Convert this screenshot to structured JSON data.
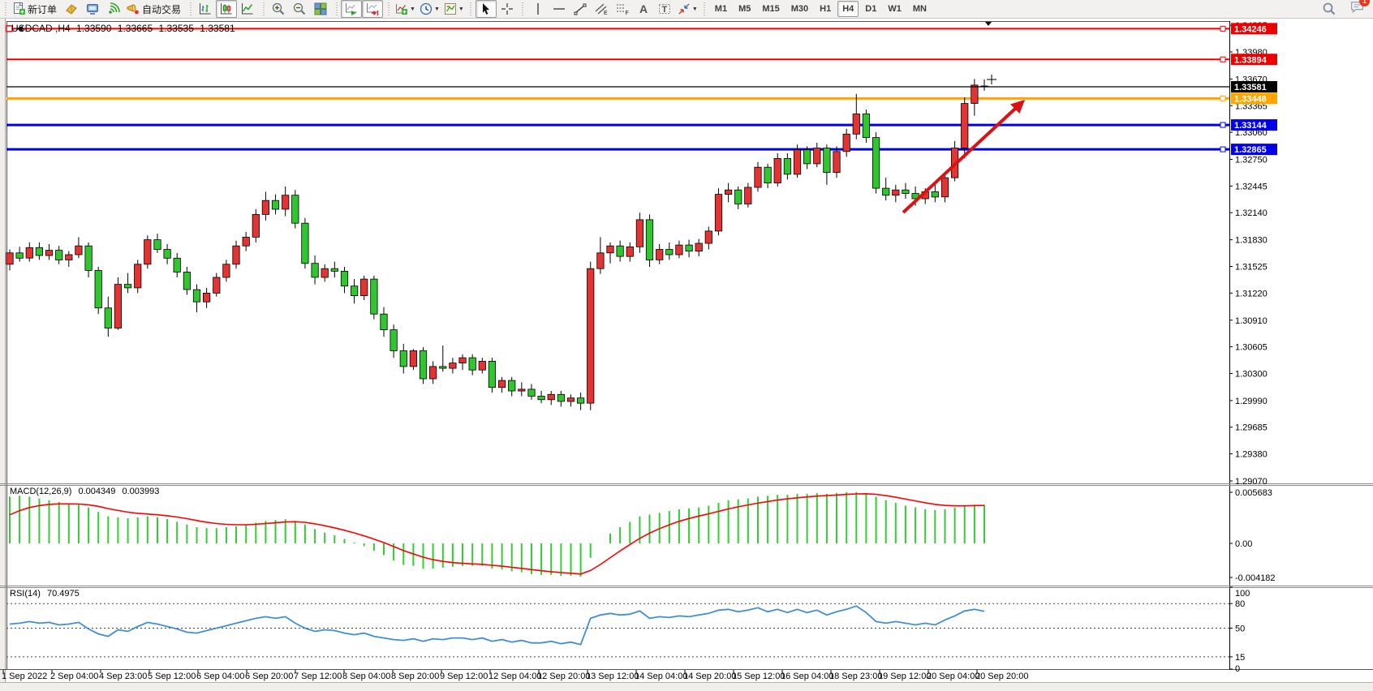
{
  "toolbar": {
    "buttons": [
      {
        "name": "new-order-button",
        "icon": "doc-plus",
        "label": "新订单",
        "group_start": true
      },
      {
        "name": "market-watch-button",
        "icon": "gold-book"
      },
      {
        "name": "community-button",
        "icon": "community"
      },
      {
        "name": "signals-button",
        "icon": "signals"
      },
      {
        "name": "autotrading-button",
        "icon": "autotrade",
        "label": "自动交易"
      },
      {
        "name": "bar-chart-button",
        "icon": "chart-bars",
        "group_start": true
      },
      {
        "name": "candle-chart-button",
        "icon": "chart-candles",
        "pressed": true
      },
      {
        "name": "line-chart-button",
        "icon": "chart-line"
      },
      {
        "name": "zoom-in-button",
        "icon": "zoom-in",
        "group_start": true
      },
      {
        "name": "zoom-out-button",
        "icon": "zoom-out"
      },
      {
        "name": "tile-windows-button",
        "icon": "tile"
      },
      {
        "name": "auto-scroll-button",
        "icon": "auto-scroll",
        "pressed": true,
        "group_start": true
      },
      {
        "name": "chart-shift-button",
        "icon": "chart-shift",
        "pressed": true
      },
      {
        "name": "indicators-button",
        "icon": "indicators",
        "dropdown": true,
        "group_start": true
      },
      {
        "name": "periods-button",
        "icon": "clock",
        "dropdown": true
      },
      {
        "name": "templates-button",
        "icon": "template",
        "dropdown": true
      },
      {
        "name": "cursor-button",
        "icon": "cursor",
        "pressed": true,
        "group_start": true
      },
      {
        "name": "crosshair-button",
        "icon": "crosshair"
      },
      {
        "name": "vertical-line-button",
        "icon": "vline",
        "group_start": true
      },
      {
        "name": "horizontal-line-button",
        "icon": "hline"
      },
      {
        "name": "trendline-button",
        "icon": "trendline"
      },
      {
        "name": "channel-button",
        "icon": "channel"
      },
      {
        "name": "fibonacci-button",
        "icon": "fibo"
      },
      {
        "name": "text-button",
        "icon": "text"
      },
      {
        "name": "label-button",
        "icon": "label"
      },
      {
        "name": "arrows-button",
        "icon": "arrows",
        "dropdown": true
      }
    ],
    "timeframes": {
      "items": [
        "M1",
        "M5",
        "M15",
        "M30",
        "H1",
        "H4",
        "D1",
        "W1",
        "MN"
      ],
      "active": "H4"
    },
    "notification_count": "1"
  },
  "chart": {
    "title": {
      "symbol": "USDCAD ,H4",
      "open": "1.33590",
      "high": "1.33665",
      "low": "1.33535",
      "close": "1.33581"
    },
    "current_price": "1.33581",
    "hlines": [
      {
        "price": "1.34246",
        "value": 1.34246,
        "color": "#ee0000",
        "width": 2,
        "kind": "resistance"
      },
      {
        "price": "1.33894",
        "value": 1.33894,
        "color": "#ee0000",
        "width": 2,
        "kind": "resistance"
      },
      {
        "price": "1.33581",
        "value": 1.33581,
        "color": "#000000",
        "width": 1,
        "kind": "current-price"
      },
      {
        "price": "1.33448",
        "value": 1.33448,
        "color": "#ffa500",
        "width": 3,
        "kind": "level"
      },
      {
        "price": "1.33144",
        "value": 1.33144,
        "color": "#0000ee",
        "width": 3,
        "kind": "support"
      },
      {
        "price": "1.32865",
        "value": 1.32865,
        "color": "#0000ee",
        "width": 3,
        "kind": "support"
      }
    ],
    "price_ticks": [
      "1.34285",
      "1.33980",
      "1.33670",
      "1.33365",
      "1.33060",
      "1.32750",
      "1.32445",
      "1.32140",
      "1.31830",
      "1.31525",
      "1.31220",
      "1.30910",
      "1.30605",
      "1.30300",
      "1.29990",
      "1.29685",
      "1.29380",
      "1.29070"
    ],
    "time_labels": [
      "1 Sep 2022",
      "2 Sep 04:00",
      "4 Sep 23:00",
      "5 Sep 12:00",
      "6 Sep 04:00",
      "6 Sep 20:00",
      "7 Sep 12:00",
      "8 Sep 04:00",
      "8 Sep 20:00",
      "9 Sep 12:00",
      "12 Sep 04:00",
      "12 Sep 20:00",
      "13 Sep 12:00",
      "14 Sep 04:00",
      "14 Sep 20:00",
      "15 Sep 12:00",
      "16 Sep 04:00",
      "18 Sep 23:00",
      "19 Sep 12:00",
      "20 Sep 04:00",
      "20 Sep 20:00"
    ]
  },
  "macd": {
    "label": "MACD(12,26,9)",
    "value_main": "0.004349",
    "value_signal": "0.003993",
    "ticks": [
      "0.005683",
      "0.00",
      "-0.004182"
    ]
  },
  "rsi": {
    "label": "RSI(14)",
    "value": "70.4975",
    "levels": [
      "100",
      "80",
      "50",
      "15",
      "0"
    ],
    "dashed_levels": [
      80,
      50,
      15
    ]
  },
  "colors": {
    "bull": "#e43333",
    "bear": "#2fc62f",
    "wick": "#000000",
    "macd_hist": "#32cd32",
    "macd_signal": "#ff0000",
    "rsi_line": "#3f8fd2",
    "arrow": "#dd1111",
    "axis_text": "#000000"
  },
  "chart_data": [
    {
      "type": "candlestick",
      "title": "USDCAD ,H4 1.33590 1.33665 1.33535 1.33581",
      "symbol": "USDCAD",
      "timeframe": "H4",
      "current_price": 1.33581,
      "ylim": [
        1.2907,
        1.34285
      ],
      "y_ticks": [
        1.34285,
        1.3398,
        1.3367,
        1.33365,
        1.3306,
        1.3275,
        1.32445,
        1.3214,
        1.3183,
        1.31525,
        1.3122,
        1.3091,
        1.30605,
        1.303,
        1.2999,
        1.29685,
        1.2938,
        1.2907
      ],
      "x_tick_labels": [
        "1 Sep 2022",
        "2 Sep 04:00",
        "4 Sep 23:00",
        "5 Sep 12:00",
        "6 Sep 04:00",
        "6 Sep 20:00",
        "7 Sep 12:00",
        "8 Sep 04:00",
        "8 Sep 20:00",
        "9 Sep 12:00",
        "12 Sep 04:00",
        "12 Sep 20:00",
        "13 Sep 12:00",
        "14 Sep 04:00",
        "14 Sep 20:00",
        "15 Sep 12:00",
        "16 Sep 04:00",
        "18 Sep 23:00",
        "19 Sep 12:00",
        "20 Sep 04:00",
        "20 Sep 20:00"
      ],
      "horizontal_lines": [
        1.34246,
        1.33894,
        1.33581,
        1.33448,
        1.33144,
        1.32865
      ],
      "annotation": "red up-trend arrow pointing to upper-right near latest rally",
      "ohlc": [
        [
          1.3155,
          1.3172,
          1.3148,
          1.3168
        ],
        [
          1.3168,
          1.3175,
          1.3158,
          1.3162
        ],
        [
          1.3162,
          1.318,
          1.3158,
          1.3174
        ],
        [
          1.3174,
          1.318,
          1.316,
          1.3165
        ],
        [
          1.3165,
          1.3178,
          1.316,
          1.3171
        ],
        [
          1.3171,
          1.3176,
          1.3155,
          1.316
        ],
        [
          1.316,
          1.317,
          1.3152,
          1.3166
        ],
        [
          1.3166,
          1.3186,
          1.3162,
          1.3176
        ],
        [
          1.3176,
          1.318,
          1.314,
          1.3148
        ],
        [
          1.3148,
          1.3152,
          1.3098,
          1.3105
        ],
        [
          1.3105,
          1.3118,
          1.3072,
          1.3082
        ],
        [
          1.3082,
          1.314,
          1.308,
          1.3132
        ],
        [
          1.3132,
          1.3145,
          1.3122,
          1.3128
        ],
        [
          1.3128,
          1.316,
          1.3122,
          1.3155
        ],
        [
          1.3155,
          1.3188,
          1.315,
          1.3183
        ],
        [
          1.3183,
          1.319,
          1.3168,
          1.3172
        ],
        [
          1.3172,
          1.3178,
          1.3155,
          1.3162
        ],
        [
          1.3162,
          1.3168,
          1.314,
          1.3146
        ],
        [
          1.3146,
          1.3152,
          1.312,
          1.3126
        ],
        [
          1.3126,
          1.3132,
          1.31,
          1.3112
        ],
        [
          1.3112,
          1.3128,
          1.3105,
          1.3122
        ],
        [
          1.3122,
          1.3145,
          1.3118,
          1.314
        ],
        [
          1.314,
          1.316,
          1.3135,
          1.3155
        ],
        [
          1.3155,
          1.3182,
          1.315,
          1.3176
        ],
        [
          1.3176,
          1.3192,
          1.317,
          1.3186
        ],
        [
          1.3186,
          1.3218,
          1.318,
          1.3212
        ],
        [
          1.3212,
          1.3238,
          1.3205,
          1.3228
        ],
        [
          1.3228,
          1.3235,
          1.3212,
          1.3218
        ],
        [
          1.3218,
          1.3244,
          1.321,
          1.3234
        ],
        [
          1.3234,
          1.324,
          1.3196,
          1.3202
        ],
        [
          1.3202,
          1.3208,
          1.315,
          1.3156
        ],
        [
          1.3156,
          1.3165,
          1.3132,
          1.314
        ],
        [
          1.314,
          1.3155,
          1.3135,
          1.315
        ],
        [
          1.315,
          1.3158,
          1.314,
          1.3147
        ],
        [
          1.3147,
          1.3152,
          1.3122,
          1.313
        ],
        [
          1.313,
          1.3138,
          1.311,
          1.3119
        ],
        [
          1.3119,
          1.3142,
          1.3114,
          1.3138
        ],
        [
          1.3138,
          1.3142,
          1.3092,
          1.3098
        ],
        [
          1.3098,
          1.3106,
          1.3072,
          1.308
        ],
        [
          1.308,
          1.3086,
          1.3048,
          1.3056
        ],
        [
          1.3056,
          1.3064,
          1.303,
          1.3038
        ],
        [
          1.3038,
          1.3058,
          1.3034,
          1.3056
        ],
        [
          1.3056,
          1.306,
          1.3018,
          1.3024
        ],
        [
          1.3024,
          1.3044,
          1.3018,
          1.3038
        ],
        [
          1.3038,
          1.3062,
          1.3032,
          1.3036
        ],
        [
          1.3036,
          1.3048,
          1.303,
          1.3042
        ],
        [
          1.3042,
          1.3052,
          1.3034,
          1.3048
        ],
        [
          1.3048,
          1.3052,
          1.3028,
          1.3034
        ],
        [
          1.3034,
          1.3048,
          1.303,
          1.3044
        ],
        [
          1.3044,
          1.3048,
          1.3008,
          1.3014
        ],
        [
          1.3014,
          1.3026,
          1.3008,
          1.3022
        ],
        [
          1.3022,
          1.3026,
          1.3004,
          1.301
        ],
        [
          1.301,
          1.302,
          1.3004,
          1.3012
        ],
        [
          1.3012,
          1.3018,
          1.3,
          1.3004
        ],
        [
          1.3004,
          1.301,
          1.2996,
          1.3
        ],
        [
          1.3,
          1.301,
          1.2994,
          1.3006
        ],
        [
          1.3006,
          1.301,
          1.2992,
          1.2998
        ],
        [
          1.2998,
          1.3006,
          1.2992,
          1.3002
        ],
        [
          1.3002,
          1.3008,
          1.2988,
          1.2996
        ],
        [
          1.2996,
          1.3158,
          1.2988,
          1.315
        ],
        [
          1.315,
          1.3186,
          1.3144,
          1.3168
        ],
        [
          1.3168,
          1.318,
          1.3156,
          1.3176
        ],
        [
          1.3176,
          1.3182,
          1.3158,
          1.3164
        ],
        [
          1.3164,
          1.318,
          1.3158,
          1.3175
        ],
        [
          1.3175,
          1.3214,
          1.3168,
          1.3206
        ],
        [
          1.3206,
          1.3212,
          1.3152,
          1.316
        ],
        [
          1.316,
          1.3178,
          1.3155,
          1.3172
        ],
        [
          1.3172,
          1.318,
          1.316,
          1.3166
        ],
        [
          1.3166,
          1.3182,
          1.3162,
          1.3177
        ],
        [
          1.3177,
          1.3183,
          1.3163,
          1.317
        ],
        [
          1.317,
          1.3184,
          1.3164,
          1.3179
        ],
        [
          1.3179,
          1.3198,
          1.3172,
          1.3193
        ],
        [
          1.3193,
          1.3242,
          1.3188,
          1.3235
        ],
        [
          1.3235,
          1.3248,
          1.3226,
          1.324
        ],
        [
          1.324,
          1.3244,
          1.3218,
          1.3224
        ],
        [
          1.3224,
          1.3248,
          1.322,
          1.3243
        ],
        [
          1.3243,
          1.3272,
          1.3238,
          1.3266
        ],
        [
          1.3266,
          1.327,
          1.3242,
          1.3248
        ],
        [
          1.3248,
          1.3282,
          1.3244,
          1.3276
        ],
        [
          1.3276,
          1.3282,
          1.3252,
          1.3258
        ],
        [
          1.3258,
          1.3292,
          1.3254,
          1.3286
        ],
        [
          1.3286,
          1.329,
          1.3264,
          1.327
        ],
        [
          1.327,
          1.3294,
          1.3266,
          1.3288
        ],
        [
          1.3288,
          1.3292,
          1.3246,
          1.326
        ],
        [
          1.326,
          1.329,
          1.3254,
          1.3284
        ],
        [
          1.3284,
          1.331,
          1.3278,
          1.3304
        ],
        [
          1.3304,
          1.335,
          1.3298,
          1.3327
        ],
        [
          1.3327,
          1.3332,
          1.3294,
          1.33
        ],
        [
          1.33,
          1.3306,
          1.3236,
          1.3242
        ],
        [
          1.3242,
          1.3254,
          1.3228,
          1.3234
        ],
        [
          1.3234,
          1.3246,
          1.3226,
          1.324
        ],
        [
          1.324,
          1.3248,
          1.323,
          1.3236
        ],
        [
          1.3236,
          1.3244,
          1.3222,
          1.323
        ],
        [
          1.323,
          1.3242,
          1.3224,
          1.3238
        ],
        [
          1.3238,
          1.3246,
          1.3226,
          1.3232
        ],
        [
          1.3232,
          1.326,
          1.3226,
          1.3254
        ],
        [
          1.3254,
          1.3296,
          1.325,
          1.3288
        ],
        [
          1.3288,
          1.3346,
          1.3276,
          1.3339
        ],
        [
          1.3339,
          1.3367,
          1.3325,
          1.336
        ],
        [
          1.3359,
          1.33665,
          1.33535,
          1.33581
        ]
      ]
    },
    {
      "type": "bar",
      "name": "MACD(12,26,9)",
      "current_values": [
        0.004349,
        0.003993
      ],
      "y_ticks": [
        0.005683,
        0.0,
        -0.004182
      ],
      "values": [
        0.0052,
        0.0053,
        0.0052,
        0.005,
        0.0048,
        0.0046,
        0.0044,
        0.0043,
        0.004,
        0.0035,
        0.003,
        0.0029,
        0.0028,
        0.0029,
        0.003,
        0.0029,
        0.0027,
        0.0024,
        0.0021,
        0.0018,
        0.0017,
        0.0017,
        0.0018,
        0.0019,
        0.0021,
        0.0023,
        0.0025,
        0.0026,
        0.0027,
        0.0025,
        0.0021,
        0.0016,
        0.0012,
        0.0009,
        0.0005,
        0.0001,
        -0.0003,
        -0.0008,
        -0.0013,
        -0.0019,
        -0.0024,
        -0.0025,
        -0.0028,
        -0.0028,
        -0.0027,
        -0.0026,
        -0.0025,
        -0.0025,
        -0.0025,
        -0.0028,
        -0.0029,
        -0.0031,
        -0.0032,
        -0.0034,
        -0.0035,
        -0.0035,
        -0.0036,
        -0.0036,
        -0.0037,
        -0.0016,
        0.0,
        0.0011,
        0.0018,
        0.0024,
        0.003,
        0.0032,
        0.0034,
        0.0036,
        0.0038,
        0.0039,
        0.004,
        0.0042,
        0.0045,
        0.0048,
        0.0049,
        0.005,
        0.0052,
        0.0053,
        0.0054,
        0.0054,
        0.0055,
        0.0055,
        0.0056,
        0.0055,
        0.0056,
        0.0057,
        0.0057,
        0.0056,
        0.0052,
        0.0048,
        0.0045,
        0.0042,
        0.004,
        0.0038,
        0.0037,
        0.0038,
        0.004,
        0.0042,
        0.0043,
        0.0043
      ]
    },
    {
      "type": "line",
      "name": "RSI(14)",
      "current_value": 70.4975,
      "levels": [
        80,
        50,
        15
      ],
      "ylim": [
        0,
        100
      ],
      "values": [
        55,
        56,
        58,
        56,
        57,
        54,
        55,
        57,
        49,
        43,
        40,
        48,
        46,
        52,
        57,
        55,
        52,
        49,
        45,
        44,
        47,
        50,
        53,
        56,
        59,
        62,
        64,
        62,
        64,
        56,
        50,
        46,
        48,
        47,
        44,
        42,
        44,
        40,
        38,
        36,
        35,
        37,
        34,
        37,
        36,
        38,
        38,
        36,
        38,
        34,
        36,
        33,
        35,
        32,
        32,
        34,
        31,
        33,
        30,
        62,
        66,
        68,
        66,
        67,
        71,
        62,
        64,
        63,
        65,
        64,
        66,
        68,
        72,
        73,
        70,
        72,
        75,
        70,
        73,
        69,
        73,
        69,
        72,
        66,
        70,
        73,
        77,
        69,
        58,
        56,
        58,
        56,
        54,
        56,
        54,
        60,
        65,
        71,
        73,
        70.5
      ]
    }
  ]
}
